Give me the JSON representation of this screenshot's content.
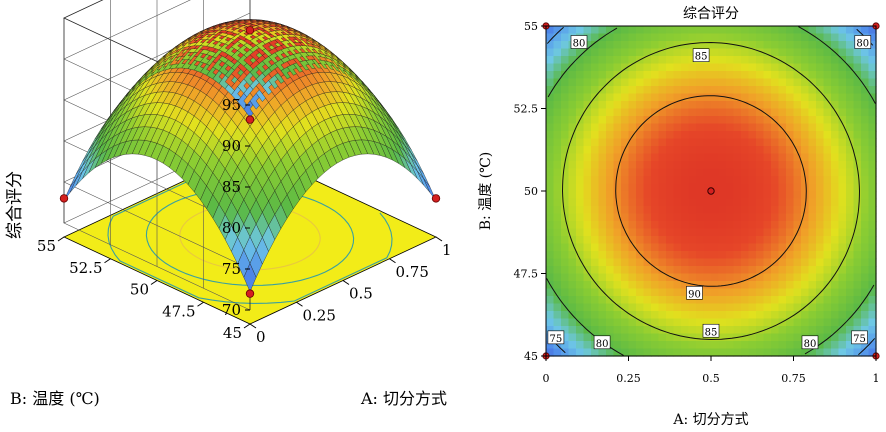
{
  "chart_data": [
    {
      "type": "surface3d",
      "zlabel": "综合评分",
      "xlabel": "A: 切分方式",
      "ylabel": "B: 温度 (℃)",
      "x_ticks": [
        "0",
        "0.25",
        "0.5",
        "0.75",
        "1"
      ],
      "y_ticks": [
        "45",
        "47.5",
        "50",
        "52.5",
        "55"
      ],
      "z_ticks": [
        "70",
        "75",
        "80",
        "85",
        "90",
        "95"
      ],
      "xlim": [
        0,
        1
      ],
      "ylim": [
        45,
        55
      ],
      "zlim": [
        70,
        95
      ],
      "grid": true,
      "design_points": [
        {
          "x": 0.5,
          "y": 50,
          "z": 93.5
        },
        {
          "x": 0,
          "y": 55,
          "z": 73
        },
        {
          "x": 1,
          "y": 45,
          "z": 73
        },
        {
          "x": 0,
          "y": 45,
          "z": 72
        },
        {
          "x": 1,
          "y": 55,
          "z": 72
        }
      ],
      "colors": {
        "low": "#4a5ee0",
        "mid": "#7ec83a",
        "high": "#e03a2a",
        "floor": "#f2ec18"
      }
    },
    {
      "type": "heatmap",
      "title": "综合评分",
      "xlabel": "A: 切分方式",
      "ylabel": "B: 温度 (℃)",
      "x_ticks": [
        "0",
        "0.25",
        "0.5",
        "0.75",
        "1"
      ],
      "y_ticks": [
        "45",
        "47.5",
        "50",
        "52.5",
        "55"
      ],
      "xlim": [
        0,
        1
      ],
      "ylim": [
        45,
        55
      ],
      "contours": [
        {
          "level": 75,
          "label": "75"
        },
        {
          "level": 80,
          "label": "80"
        },
        {
          "level": 85,
          "label": "85"
        },
        {
          "level": 90,
          "label": "90"
        }
      ],
      "center_point": {
        "x": 0.5,
        "y": 50
      },
      "corner_points": [
        {
          "x": 0,
          "y": 45
        },
        {
          "x": 1,
          "y": 45
        },
        {
          "x": 0,
          "y": 55
        },
        {
          "x": 1,
          "y": 55
        }
      ]
    }
  ]
}
